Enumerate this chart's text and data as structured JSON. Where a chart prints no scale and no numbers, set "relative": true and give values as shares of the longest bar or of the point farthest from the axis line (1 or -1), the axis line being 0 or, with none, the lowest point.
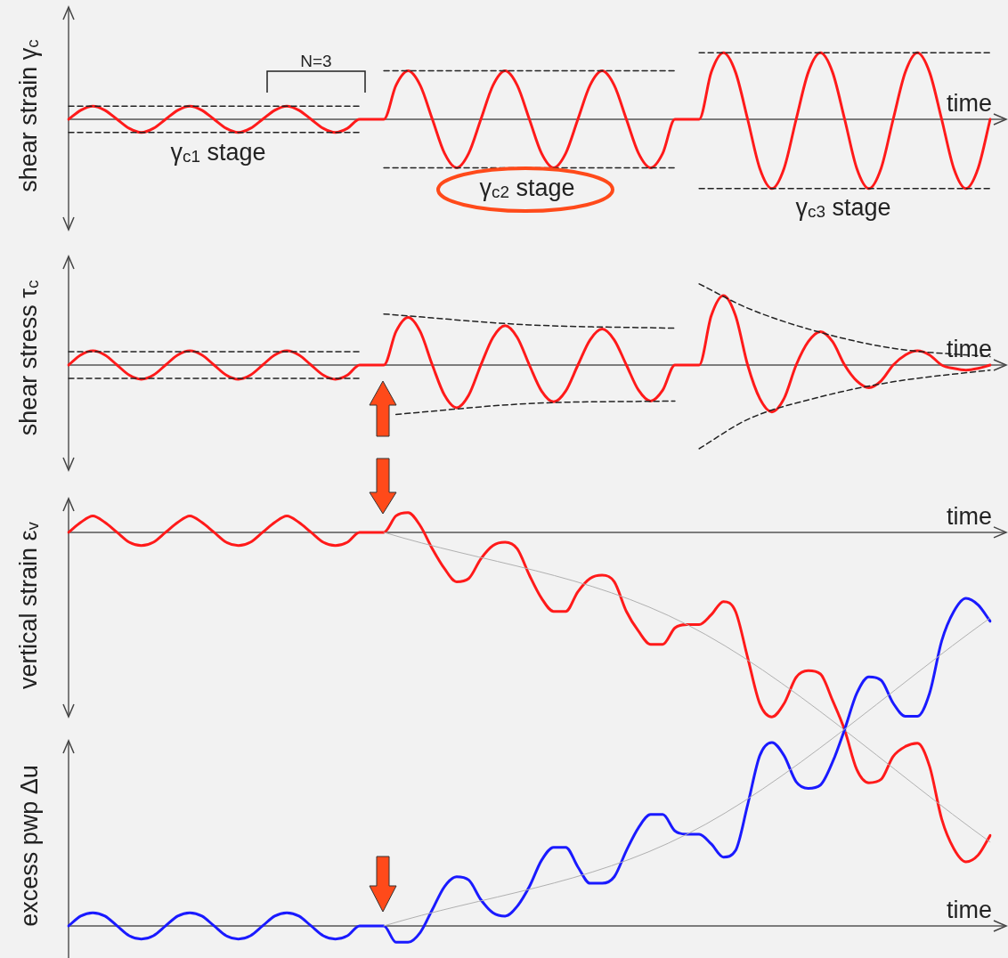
{
  "chart_data": [
    {
      "type": "line",
      "relative": true,
      "marker": "none",
      "ylabel": "shear strain γ$_{c}$",
      "xlabel": "time",
      "annotations": [
        "N=3",
        "γ$_{c1}$ stage",
        "γ$_{c2}$ stage",
        "γ$_{c3}$ stage"
      ],
      "categories": [
        null,
        null,
        null,
        null,
        null,
        null,
        null,
        null,
        null,
        null,
        null,
        null,
        null,
        null,
        null,
        null,
        null,
        null,
        null,
        null,
        null,
        null,
        null,
        null,
        null,
        null,
        null,
        null,
        null,
        null,
        null,
        null,
        null,
        null,
        null,
        null,
        null,
        null,
        null,
        null,
        null,
        null,
        null,
        null,
        null,
        null,
        null,
        null,
        null,
        null,
        null,
        null,
        null,
        null,
        null,
        null,
        null,
        null,
        null,
        null,
        null,
        null,
        null,
        null,
        null,
        null,
        null,
        null,
        null,
        null,
        null,
        null,
        null,
        null,
        null,
        null,
        null
      ],
      "series": [
        {
          "color": "#222222",
          "line_style": "dashed",
          "values": [
            0.19,
            null,
            null,
            null,
            null,
            null,
            null,
            null,
            null,
            null,
            null,
            null,
            null,
            null,
            null,
            null,
            null,
            null,
            null,
            null,
            null,
            null,
            null,
            null,
            0.19,
            null,
            null,
            null,
            null,
            null,
            null,
            null,
            null,
            null,
            null,
            null,
            null,
            null,
            null,
            null,
            null,
            null,
            null,
            null,
            null,
            null,
            null,
            null,
            null,
            null,
            null,
            null,
            null,
            null,
            null,
            null,
            null,
            null,
            null,
            null,
            null,
            null,
            null,
            null,
            null,
            null,
            null,
            null,
            null,
            null,
            null,
            null,
            null,
            null,
            null,
            null,
            null
          ]
        },
        {
          "color": "#222222",
          "line_style": "dashed",
          "values": [
            -0.19,
            null,
            null,
            null,
            null,
            null,
            null,
            null,
            null,
            null,
            null,
            null,
            null,
            null,
            null,
            null,
            null,
            null,
            null,
            null,
            null,
            null,
            null,
            null,
            -0.19,
            null,
            null,
            null,
            null,
            null,
            null,
            null,
            null,
            null,
            null,
            null,
            null,
            null,
            null,
            null,
            null,
            null,
            null,
            null,
            null,
            null,
            null,
            null,
            null,
            null,
            null,
            null,
            null,
            null,
            null,
            null,
            null,
            null,
            null,
            null,
            null,
            null,
            null,
            null,
            null,
            null,
            null,
            null,
            null,
            null,
            null,
            null,
            null,
            null,
            null,
            null,
            null
          ]
        },
        {
          "color": "#222222",
          "line_style": "dashed",
          "values": [
            null,
            null,
            null,
            null,
            null,
            null,
            null,
            null,
            null,
            null,
            null,
            null,
            null,
            null,
            null,
            null,
            null,
            null,
            null,
            null,
            null,
            null,
            null,
            null,
            null,
            null,
            0.7,
            null,
            null,
            null,
            null,
            null,
            null,
            null,
            null,
            null,
            null,
            null,
            null,
            null,
            null,
            null,
            null,
            null,
            null,
            null,
            null,
            null,
            null,
            null,
            0.7,
            null,
            null,
            null,
            null,
            null,
            null,
            null,
            null,
            null,
            null,
            null,
            null,
            null,
            null,
            null,
            null,
            null,
            null,
            null,
            null,
            null,
            null,
            null,
            null,
            null,
            null
          ]
        },
        {
          "color": "#222222",
          "line_style": "dashed",
          "values": [
            null,
            null,
            null,
            null,
            null,
            null,
            null,
            null,
            null,
            null,
            null,
            null,
            null,
            null,
            null,
            null,
            null,
            null,
            null,
            null,
            null,
            null,
            null,
            null,
            null,
            null,
            -0.7,
            null,
            null,
            null,
            null,
            null,
            null,
            null,
            null,
            null,
            null,
            null,
            null,
            null,
            null,
            null,
            null,
            null,
            null,
            null,
            null,
            null,
            null,
            null,
            -0.7,
            null,
            null,
            null,
            null,
            null,
            null,
            null,
            null,
            null,
            null,
            null,
            null,
            null,
            null,
            null,
            null,
            null,
            null,
            null,
            null,
            null,
            null,
            null,
            null,
            null,
            null
          ]
        },
        {
          "color": "#222222",
          "line_style": "dashed",
          "values": [
            null,
            null,
            null,
            null,
            null,
            null,
            null,
            null,
            null,
            null,
            null,
            null,
            null,
            null,
            null,
            null,
            null,
            null,
            null,
            null,
            null,
            null,
            null,
            null,
            null,
            null,
            null,
            null,
            null,
            null,
            null,
            null,
            null,
            null,
            null,
            null,
            null,
            null,
            null,
            null,
            null,
            null,
            null,
            null,
            null,
            null,
            null,
            null,
            null,
            null,
            null,
            null,
            0.96,
            null,
            null,
            null,
            null,
            null,
            null,
            null,
            null,
            null,
            null,
            null,
            null,
            null,
            null,
            null,
            null,
            null,
            null,
            null,
            null,
            null,
            null,
            null,
            0.96
          ]
        },
        {
          "color": "#222222",
          "line_style": "dashed",
          "values": [
            null,
            null,
            null,
            null,
            null,
            null,
            null,
            null,
            null,
            null,
            null,
            null,
            null,
            null,
            null,
            null,
            null,
            null,
            null,
            null,
            null,
            null,
            null,
            null,
            null,
            null,
            null,
            null,
            null,
            null,
            null,
            null,
            null,
            null,
            null,
            null,
            null,
            null,
            null,
            null,
            null,
            null,
            null,
            null,
            null,
            null,
            null,
            null,
            null,
            null,
            null,
            null,
            -1,
            null,
            null,
            null,
            null,
            null,
            null,
            null,
            null,
            null,
            null,
            null,
            null,
            null,
            null,
            null,
            null,
            null,
            null,
            null,
            null,
            null,
            null,
            null,
            -1
          ]
        },
        {
          "color": "#ff1a1a",
          "values": [
            0,
            0.13,
            0.19,
            0.13,
            0,
            -0.13,
            -0.19,
            -0.13,
            0,
            0.13,
            0.19,
            0.13,
            0,
            -0.13,
            -0.19,
            -0.13,
            0,
            0.13,
            0.19,
            0.13,
            0,
            -0.13,
            -0.19,
            -0.13,
            0,
            0,
            0,
            0.49,
            0.7,
            0.49,
            0,
            -0.49,
            -0.7,
            -0.49,
            0,
            0.49,
            0.7,
            0.49,
            0,
            -0.49,
            -0.7,
            -0.49,
            0,
            0.49,
            0.7,
            0.49,
            0,
            -0.49,
            -0.7,
            -0.49,
            0,
            0,
            0,
            0.68,
            0.96,
            0.68,
            0,
            -0.71,
            -1,
            -0.71,
            0,
            0.68,
            0.96,
            0.68,
            0,
            -0.71,
            -1,
            -0.71,
            0,
            0.68,
            0.96,
            0.68,
            0,
            -0.71,
            -1,
            -0.71,
            0
          ]
        }
      ]
    },
    {
      "type": "line",
      "relative": true,
      "marker": "none",
      "ylabel": "shear stress τ$_{c}$",
      "xlabel": "time",
      "categories": [
        null,
        null,
        null,
        null,
        null,
        null,
        null,
        null,
        null,
        null,
        null,
        null,
        null,
        null,
        null,
        null,
        null,
        null,
        null,
        null,
        null,
        null,
        null,
        null,
        null,
        null,
        null,
        null,
        null,
        null,
        null,
        null,
        null,
        null,
        null,
        null,
        null,
        null,
        null,
        null,
        null,
        null,
        null,
        null,
        null,
        null,
        null,
        null,
        null,
        null,
        null,
        null,
        null,
        null,
        null,
        null,
        null,
        null,
        null,
        null,
        null,
        null,
        null,
        null,
        null,
        null,
        null,
        null,
        null,
        null,
        null,
        null,
        null,
        null,
        null,
        null,
        null
      ],
      "series": [
        {
          "color": "#222222",
          "line_style": "dashed",
          "values": [
            0.16,
            null,
            null,
            null,
            null,
            null,
            null,
            null,
            null,
            null,
            null,
            null,
            null,
            null,
            null,
            null,
            null,
            null,
            null,
            null,
            null,
            null,
            null,
            null,
            0.16,
            null,
            null,
            null,
            null,
            null,
            null,
            null,
            null,
            null,
            null,
            null,
            null,
            null,
            null,
            null,
            null,
            null,
            null,
            null,
            null,
            null,
            null,
            null,
            null,
            null,
            null,
            null,
            null,
            null,
            null,
            null,
            null,
            null,
            null,
            null,
            null,
            null,
            null,
            null,
            null,
            null,
            null,
            null,
            null,
            null,
            null,
            null,
            null,
            null,
            null,
            null,
            null
          ]
        },
        {
          "color": "#222222",
          "line_style": "dashed",
          "values": [
            -0.16,
            null,
            null,
            null,
            null,
            null,
            null,
            null,
            null,
            null,
            null,
            null,
            null,
            null,
            null,
            null,
            null,
            null,
            null,
            null,
            null,
            null,
            null,
            null,
            -0.16,
            null,
            null,
            null,
            null,
            null,
            null,
            null,
            null,
            null,
            null,
            null,
            null,
            null,
            null,
            null,
            null,
            null,
            null,
            null,
            null,
            null,
            null,
            null,
            null,
            null,
            null,
            null,
            null,
            null,
            null,
            null,
            null,
            null,
            null,
            null,
            null,
            null,
            null,
            null,
            null,
            null,
            null,
            null,
            null,
            null,
            null,
            null,
            null,
            null,
            null,
            null,
            null
          ]
        },
        {
          "color": "#222222",
          "line_style": "dashed",
          "values": [
            null,
            null,
            null,
            null,
            null,
            null,
            null,
            null,
            null,
            null,
            null,
            null,
            null,
            null,
            null,
            null,
            null,
            null,
            null,
            null,
            null,
            null,
            null,
            null,
            null,
            null,
            0.61,
            null,
            null,
            null,
            null,
            null,
            null,
            null,
            null,
            null,
            null,
            null,
            0.48,
            null,
            null,
            null,
            null,
            null,
            null,
            null,
            null,
            null,
            null,
            null,
            0.44,
            null,
            null,
            null,
            null,
            null,
            null,
            null,
            null,
            null,
            null,
            null,
            null,
            null,
            null,
            null,
            null,
            null,
            null,
            null,
            null,
            null,
            null,
            null,
            null,
            null,
            null
          ]
        },
        {
          "color": "#222222",
          "line_style": "dashed",
          "values": [
            null,
            null,
            null,
            null,
            null,
            null,
            null,
            null,
            null,
            null,
            null,
            null,
            null,
            null,
            null,
            null,
            null,
            null,
            null,
            null,
            null,
            null,
            null,
            null,
            null,
            null,
            null,
            -0.59,
            null,
            null,
            null,
            null,
            null,
            null,
            null,
            null,
            null,
            null,
            -0.46,
            null,
            null,
            null,
            null,
            null,
            null,
            null,
            null,
            null,
            null,
            null,
            -0.43,
            null,
            null,
            null,
            null,
            null,
            null,
            null,
            null,
            null,
            null,
            null,
            null,
            null,
            null,
            null,
            null,
            null,
            null,
            null,
            null,
            null,
            null,
            null,
            null,
            null,
            null
          ]
        },
        {
          "color": "#222222",
          "line_style": "dashed",
          "values": [
            null,
            null,
            null,
            null,
            null,
            null,
            null,
            null,
            null,
            null,
            null,
            null,
            null,
            null,
            null,
            null,
            null,
            null,
            null,
            null,
            null,
            null,
            null,
            null,
            null,
            null,
            null,
            null,
            null,
            null,
            null,
            null,
            null,
            null,
            null,
            null,
            null,
            null,
            null,
            null,
            null,
            null,
            null,
            null,
            null,
            null,
            null,
            null,
            null,
            null,
            null,
            null,
            0.97,
            null,
            null,
            null,
            0.68,
            null,
            null,
            null,
            null,
            null,
            0.39,
            null,
            null,
            null,
            null,
            null,
            0.2,
            null,
            null,
            null,
            null,
            null,
            null,
            null,
            0.1
          ]
        },
        {
          "color": "#222222",
          "line_style": "dashed",
          "values": [
            null,
            null,
            null,
            null,
            null,
            null,
            null,
            null,
            null,
            null,
            null,
            null,
            null,
            null,
            null,
            null,
            null,
            null,
            null,
            null,
            null,
            null,
            null,
            null,
            null,
            null,
            null,
            null,
            null,
            null,
            null,
            null,
            null,
            null,
            null,
            null,
            null,
            null,
            null,
            null,
            null,
            null,
            null,
            null,
            null,
            null,
            null,
            null,
            null,
            null,
            null,
            null,
            -1,
            null,
            null,
            null,
            -0.65,
            null,
            null,
            null,
            null,
            null,
            -0.38,
            null,
            null,
            null,
            null,
            null,
            -0.2,
            null,
            null,
            null,
            null,
            null,
            null,
            null,
            -0.06
          ]
        },
        {
          "color": "#ff1a1a",
          "values": [
            0,
            0.12,
            0.17,
            0.12,
            0,
            -0.12,
            -0.17,
            -0.12,
            0,
            0.12,
            0.17,
            0.12,
            0,
            -0.12,
            -0.17,
            -0.12,
            0,
            0.12,
            0.17,
            0.12,
            0,
            -0.12,
            -0.17,
            -0.12,
            0,
            0,
            0,
            0.4,
            0.57,
            0.4,
            0,
            -0.36,
            -0.51,
            -0.36,
            0,
            0.33,
            0.47,
            0.33,
            0,
            -0.31,
            -0.44,
            -0.31,
            0,
            0.3,
            0.43,
            0.3,
            0,
            -0.3,
            -0.43,
            -0.3,
            0,
            0,
            0,
            0.59,
            0.83,
            0.59,
            0,
            -0.4,
            -0.56,
            -0.4,
            0,
            0.28,
            0.4,
            0.28,
            0,
            -0.19,
            -0.27,
            -0.19,
            0,
            0.12,
            0.17,
            0.12,
            0,
            -0.04,
            -0.06,
            -0.04,
            0
          ]
        }
      ]
    },
    {
      "type": "line",
      "relative": true,
      "marker": "none",
      "ylabel": "vertical strain ε$_{v}$",
      "xlabel": "time",
      "categories": [
        null,
        null,
        null,
        null,
        null,
        null,
        null,
        null,
        null,
        null,
        null,
        null,
        null,
        null,
        null,
        null,
        null,
        null,
        null,
        null,
        null,
        null,
        null,
        null,
        null,
        null,
        null,
        null,
        null,
        null,
        null,
        null,
        null,
        null,
        null,
        null,
        null,
        null,
        null,
        null,
        null,
        null,
        null,
        null,
        null,
        null,
        null,
        null,
        null,
        null,
        null,
        null,
        null,
        null,
        null,
        null,
        null,
        null,
        null,
        null,
        null,
        null,
        null,
        null,
        null,
        null,
        null,
        null,
        null,
        null,
        null,
        null,
        null,
        null,
        null,
        null,
        null
      ],
      "series": [
        {
          "color": "#b0b0b0",
          "values": [
            null,
            null,
            null,
            null,
            null,
            null,
            null,
            null,
            null,
            null,
            null,
            null,
            null,
            null,
            null,
            null,
            null,
            null,
            null,
            null,
            null,
            null,
            null,
            null,
            null,
            null,
            0,
            null,
            null,
            null,
            null,
            null,
            null,
            null,
            null,
            null,
            null,
            null,
            null,
            null,
            null,
            null,
            null,
            null,
            null,
            null,
            null,
            null,
            null,
            null,
            null,
            -0.28,
            null,
            null,
            null,
            null,
            null,
            null,
            null,
            null,
            null,
            null,
            null,
            null,
            null,
            null,
            null,
            null,
            null,
            null,
            null,
            null,
            null,
            null,
            null,
            null,
            -0.94
          ]
        },
        {
          "color": "#ff1a1a",
          "values": [
            0,
            0.03,
            0.05,
            0.03,
            0,
            -0.03,
            -0.04,
            -0.03,
            0,
            0.03,
            0.05,
            0.03,
            0,
            -0.03,
            -0.04,
            -0.03,
            0,
            0.03,
            0.05,
            0.03,
            0,
            -0.03,
            -0.04,
            -0.03,
            0,
            0,
            0,
            0.05,
            0.06,
            0.02,
            -0.05,
            -0.11,
            -0.15,
            -0.14,
            -0.08,
            -0.04,
            -0.03,
            -0.05,
            -0.13,
            -0.2,
            -0.24,
            -0.24,
            -0.18,
            -0.14,
            -0.13,
            -0.15,
            -0.24,
            -0.3,
            -0.34,
            -0.34,
            -0.29,
            -0.28,
            -0.28,
            -0.25,
            -0.21,
            -0.24,
            -0.38,
            -0.52,
            -0.56,
            -0.52,
            -0.44,
            -0.42,
            -0.43,
            -0.51,
            -0.6,
            -0.72,
            -0.76,
            -0.75,
            -0.68,
            -0.65,
            -0.64,
            -0.71,
            -0.87,
            -0.96,
            -1,
            -0.98,
            -0.92
          ]
        }
      ]
    },
    {
      "type": "line",
      "relative": true,
      "marker": "none",
      "ylabel": "excess pwp Δu",
      "xlabel": "time",
      "categories": [
        null,
        null,
        null,
        null,
        null,
        null,
        null,
        null,
        null,
        null,
        null,
        null,
        null,
        null,
        null,
        null,
        null,
        null,
        null,
        null,
        null,
        null,
        null,
        null,
        null,
        null,
        null,
        null,
        null,
        null,
        null,
        null,
        null,
        null,
        null,
        null,
        null,
        null,
        null,
        null,
        null,
        null,
        null,
        null,
        null,
        null,
        null,
        null,
        null,
        null,
        null,
        null,
        null,
        null,
        null,
        null,
        null,
        null,
        null,
        null,
        null,
        null,
        null,
        null,
        null,
        null,
        null,
        null,
        null,
        null,
        null,
        null,
        null,
        null,
        null,
        null,
        null
      ],
      "series": [
        {
          "color": "#b0b0b0",
          "values": [
            null,
            null,
            null,
            null,
            null,
            null,
            null,
            null,
            null,
            null,
            null,
            null,
            null,
            null,
            null,
            null,
            null,
            null,
            null,
            null,
            null,
            null,
            null,
            null,
            null,
            null,
            0,
            null,
            null,
            null,
            null,
            null,
            null,
            null,
            null,
            null,
            null,
            null,
            null,
            null,
            null,
            null,
            null,
            null,
            null,
            null,
            null,
            null,
            null,
            null,
            null,
            0.28,
            null,
            null,
            null,
            null,
            null,
            null,
            null,
            null,
            null,
            null,
            null,
            null,
            null,
            null,
            null,
            null,
            null,
            null,
            null,
            null,
            null,
            null,
            null,
            null,
            0.94
          ]
        },
        {
          "color": "#1a1aff",
          "values": [
            0,
            0.03,
            0.04,
            0.03,
            0,
            -0.03,
            -0.04,
            -0.03,
            0,
            0.03,
            0.04,
            0.03,
            0,
            -0.03,
            -0.04,
            -0.03,
            0,
            0.03,
            0.04,
            0.03,
            0,
            -0.03,
            -0.04,
            -0.03,
            0,
            0,
            0,
            -0.05,
            -0.05,
            -0.02,
            0.05,
            0.12,
            0.15,
            0.14,
            0.08,
            0.04,
            0.03,
            0.06,
            0.12,
            0.2,
            0.24,
            0.24,
            0.18,
            0.13,
            0.13,
            0.15,
            0.23,
            0.3,
            0.34,
            0.34,
            0.29,
            0.28,
            0.28,
            0.25,
            0.21,
            0.23,
            0.37,
            0.52,
            0.56,
            0.52,
            0.44,
            0.42,
            0.43,
            0.5,
            0.6,
            0.71,
            0.76,
            0.75,
            0.68,
            0.64,
            0.64,
            0.71,
            0.87,
            0.96,
            1,
            0.98,
            0.93
          ]
        }
      ]
    }
  ]
}
